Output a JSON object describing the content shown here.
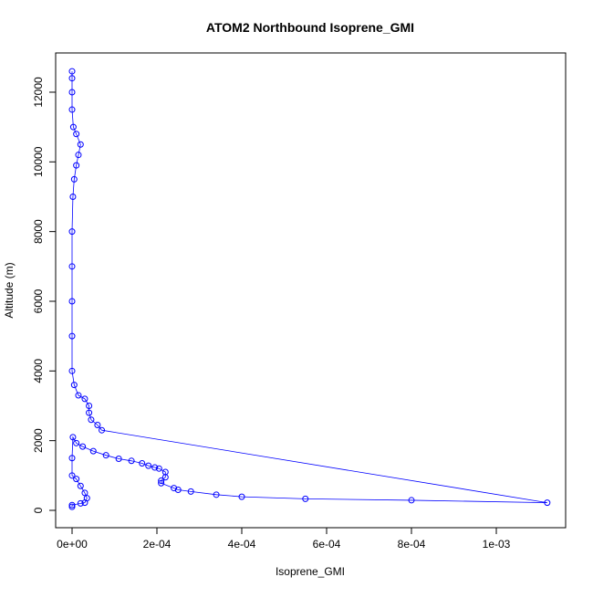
{
  "chart_data": {
    "type": "line",
    "title": "ATOM2 Northbound Isoprene_GMI",
    "x_label": "Isoprene_GMI",
    "y_label": "Altitude (m)",
    "color": "#0000ff",
    "xlim": [
      -3.87e-05,
      0.0011634
    ],
    "ylim": [
      -498,
      13126
    ],
    "xticks": [
      {
        "value": 0,
        "label": "0e+00"
      },
      {
        "value": 0.0002,
        "label": "2e-04"
      },
      {
        "value": 0.0004,
        "label": "4e-04"
      },
      {
        "value": 0.0006,
        "label": "6e-04"
      },
      {
        "value": 0.0008,
        "label": "8e-04"
      },
      {
        "value": 0.001,
        "label": "1e-03"
      }
    ],
    "yticks": [
      0,
      2000,
      4000,
      6000,
      8000,
      10000,
      12000
    ],
    "x": [
      0,
      0,
      0,
      0,
      3e-06,
      1e-05,
      2e-05,
      1.5e-05,
      1e-05,
      5e-06,
      2e-06,
      0,
      0,
      0,
      0,
      0,
      5e-06,
      1.5e-05,
      3e-05,
      4e-05,
      4e-05,
      4.5e-05,
      6e-05,
      7e-05,
      0.00112,
      0.0008,
      0.00055,
      0.0004,
      0.00034,
      0.00028,
      0.00025,
      0.00024,
      0.00021,
      0.00021,
      0.00022,
      0.00022,
      0.000205,
      0.000195,
      0.00018,
      0.000165,
      0.00014,
      0.00011,
      8e-05,
      5e-05,
      2.5e-05,
      1e-05,
      2e-06,
      0,
      0,
      1e-05,
      2e-05,
      3e-05,
      3.5e-05,
      3e-05,
      2e-05,
      0,
      0
    ],
    "y": [
      12600,
      12400,
      12000,
      11500,
      11000,
      10800,
      10500,
      10200,
      9900,
      9500,
      9000,
      8000,
      7000,
      6000,
      5000,
      4000,
      3600,
      3300,
      3200,
      3000,
      2800,
      2600,
      2450,
      2300,
      220,
      290,
      330,
      390,
      450,
      540,
      590,
      640,
      780,
      850,
      950,
      1100,
      1200,
      1230,
      1280,
      1350,
      1420,
      1480,
      1580,
      1700,
      1830,
      1930,
      2100,
      1500,
      1000,
      900,
      700,
      500,
      350,
      220,
      200,
      150,
      100
    ]
  }
}
